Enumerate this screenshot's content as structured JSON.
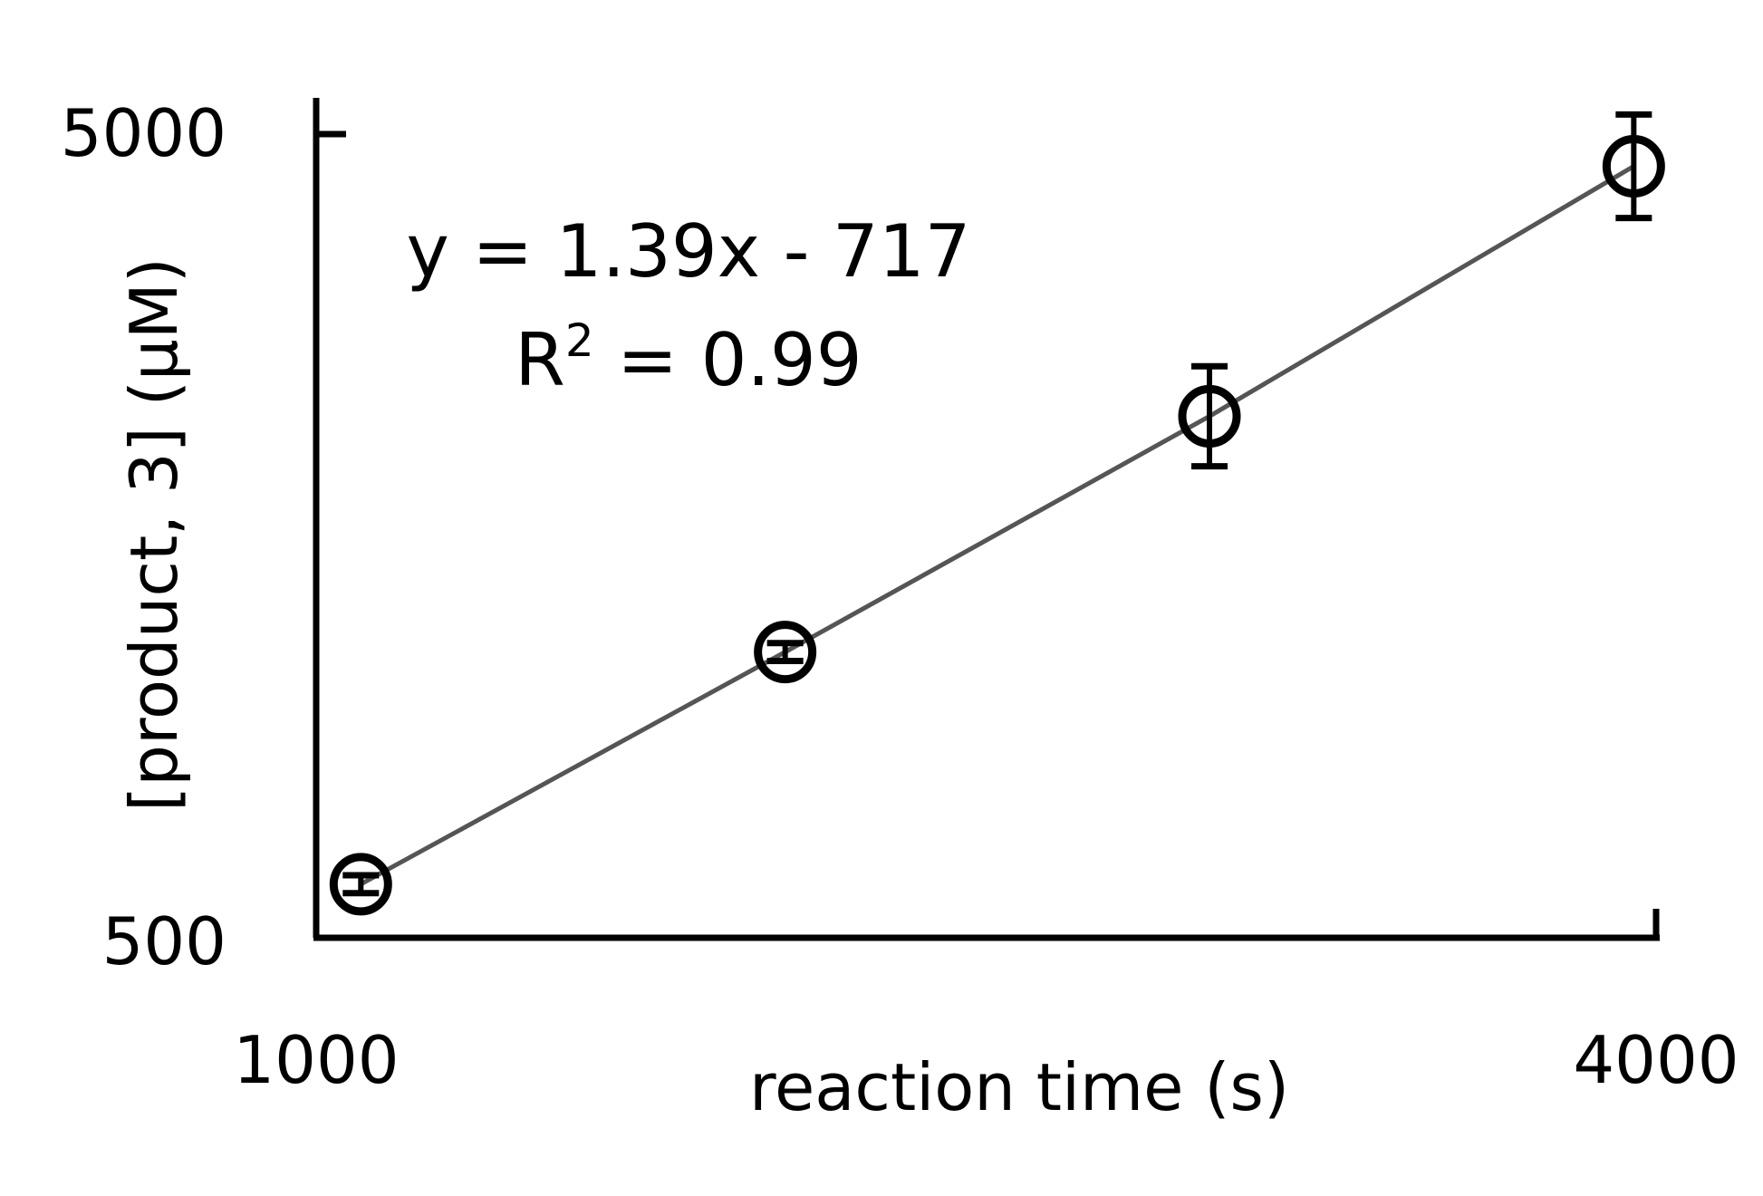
{
  "chart_data": {
    "type": "scatter",
    "xlabel": "reaction time (s)",
    "ylabel": "[product, 3] (μM)",
    "xlim": [
      1000,
      4000
    ],
    "ylim": [
      500,
      5000
    ],
    "x_ticks": [
      "1000",
      "4000"
    ],
    "y_ticks": [
      "5000",
      "500"
    ],
    "series": [
      {
        "x": [
          1100,
          2050,
          3000,
          3950
        ],
        "y": [
          800,
          2100,
          3420,
          4820
        ],
        "error": [
          50,
          50,
          280,
          290
        ],
        "trendline": {
          "slope": 1.39,
          "intercept": -717
        }
      }
    ],
    "annotations": {
      "equation": "y = 1.39x - 717",
      "r2_prefix": "R",
      "r2_sup": "2",
      "r2_value": " = 0.99"
    },
    "grid": false,
    "legend": "none",
    "colors": {
      "marker": "#000000",
      "line": "#555555",
      "axis": "#000000"
    }
  }
}
